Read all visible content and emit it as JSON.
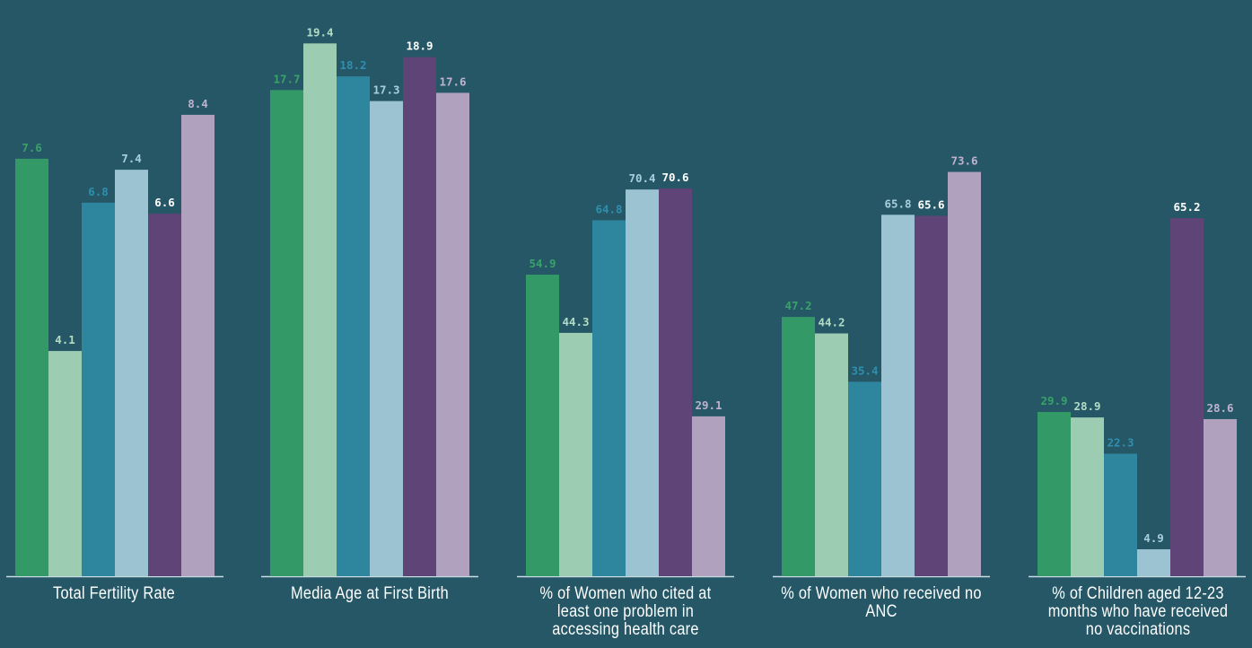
{
  "chart_data": {
    "type": "bar",
    "categories": [
      "Total Fertility Rate",
      "Media Age at First Birth",
      "% of Women who cited at least one problem in accessing health care",
      "% of Women who received no ANC",
      "% of Children aged 12-23 months who have received no vaccinations"
    ],
    "series": [
      {
        "color": "#339966",
        "label_color": "#38a269",
        "values": [
          7.6,
          17.7,
          54.9,
          47.2,
          29.9
        ]
      },
      {
        "color": "#9ccdb2",
        "label_color": "#b2dcc4",
        "values": [
          4.1,
          19.4,
          44.3,
          44.2,
          28.9
        ]
      },
      {
        "color": "#2e859e",
        "label_color": "#2f8fae",
        "values": [
          6.8,
          18.2,
          64.8,
          35.4,
          22.3
        ]
      },
      {
        "color": "#9bc3d1",
        "label_color": "#a9cfdc",
        "values": [
          7.4,
          17.3,
          70.4,
          65.8,
          4.9
        ]
      },
      {
        "color": "#5f4577",
        "label_color": "#ffffff",
        "values": [
          6.6,
          18.9,
          70.6,
          65.6,
          65.2
        ]
      },
      {
        "color": "#b0a2bf",
        "label_color": "#c0b2cd",
        "values": [
          8.4,
          17.6,
          29.1,
          73.6,
          28.6
        ]
      }
    ],
    "group_scales": [
      {
        "ylim": [
          0,
          10
        ]
      },
      {
        "ylim": [
          0,
          20
        ]
      },
      {
        "ylim": [
          0,
          100
        ]
      },
      {
        "ylim": [
          0,
          100
        ]
      },
      {
        "ylim": [
          0,
          100
        ]
      }
    ],
    "baseline_color": "#c8dde3",
    "label_text_color": "#ffffff",
    "grid": false,
    "legend": "none"
  }
}
